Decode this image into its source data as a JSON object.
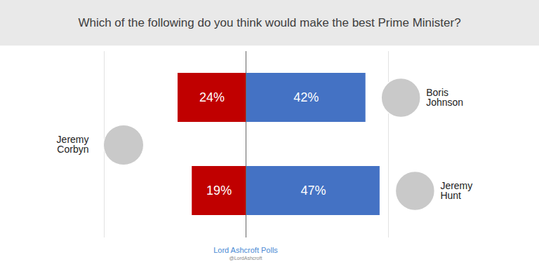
{
  "chart_data": {
    "type": "bar",
    "title": "Which of the following do you think would make the best Prime Minister?",
    "annotations": [
      "Lord Ashcroft Polls",
      "@LordAshcroft"
    ],
    "orientation": "horizontal",
    "categories": [
      "Boris Johnson",
      "Jeremy Hunt"
    ],
    "series": [
      {
        "name": "Jeremy Corbyn",
        "color": "#c00000",
        "values": [
          24,
          19
        ],
        "value_labels": [
          "24%",
          "19%"
        ]
      },
      {
        "color": "#4472c4",
        "values": [
          42,
          47
        ],
        "value_labels": [
          "42%",
          "47%"
        ]
      }
    ],
    "xlim": [
      0,
      50
    ],
    "data_labels": true,
    "tick_labels": false
  }
}
